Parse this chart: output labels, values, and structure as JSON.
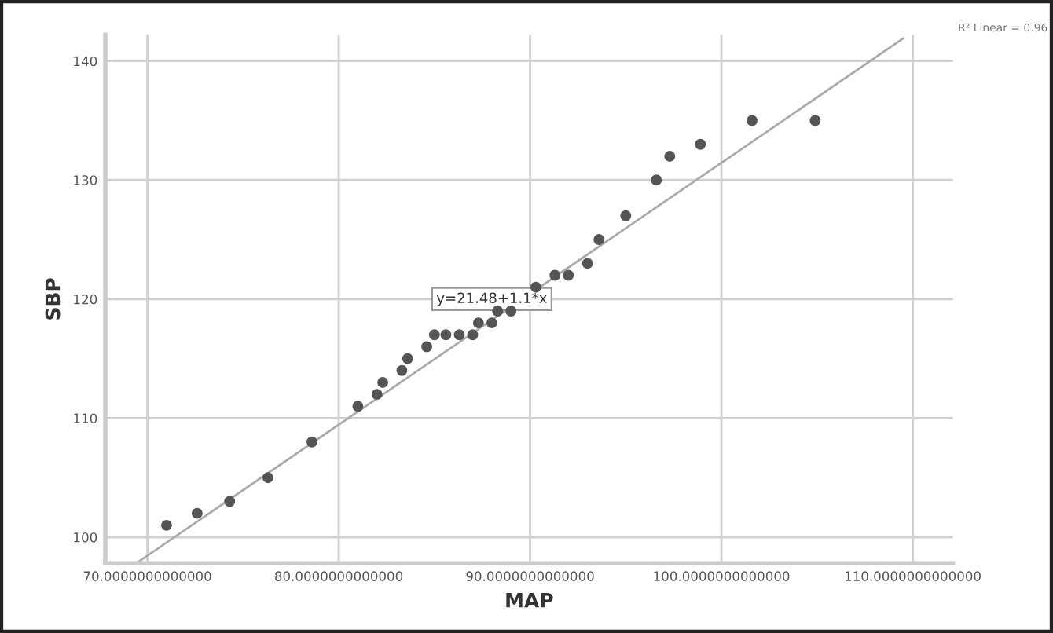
{
  "chart_data": {
    "type": "scatter",
    "xlabel": "MAP",
    "ylabel": "SBP",
    "series": [
      {
        "color": "#555555",
        "marker": "circle",
        "x": [
          71.0,
          72.6,
          74.3,
          76.3,
          78.6,
          81.0,
          82.0,
          82.3,
          83.3,
          83.6,
          84.6,
          85.0,
          85.6,
          86.3,
          87.0,
          87.3,
          88.0,
          88.3,
          89.0,
          90.3,
          91.3,
          92.0,
          93.0,
          93.6,
          95.0,
          96.6,
          97.3,
          98.9,
          101.6,
          104.9
        ],
        "values": [
          101,
          102,
          103,
          105,
          108,
          111,
          112,
          113,
          114,
          115,
          116,
          117,
          117,
          117,
          117,
          118,
          118,
          119,
          119,
          121,
          122,
          122,
          123,
          125,
          127,
          130,
          132,
          133,
          135,
          135
        ]
      },
      {
        "type": "line",
        "color": "#aaaaaa",
        "line_style": "solid",
        "x": [
          69.5,
          109.5
        ],
        "values": [
          97.9,
          141.9
        ]
      }
    ],
    "annotations": [
      {
        "text": "y=21.48+1.1*x",
        "x": 88.0,
        "y": 120.0
      },
      "R² Linear = 0.96"
    ],
    "xlim": [
      67.8,
      112.1
    ],
    "ylim": [
      97.8,
      142.2
    ],
    "xticks": [
      {
        "value": 70,
        "label": "70.0000000000000"
      },
      {
        "value": 80,
        "label": "80.0000000000000"
      },
      {
        "value": 90,
        "label": "90.0000000000000"
      },
      {
        "value": 100,
        "label": "100.0000000000000"
      },
      {
        "value": 110,
        "label": "110.0000000000000"
      }
    ],
    "yticks": [
      100,
      110,
      120,
      130,
      140
    ],
    "grid": true,
    "legend": false
  }
}
